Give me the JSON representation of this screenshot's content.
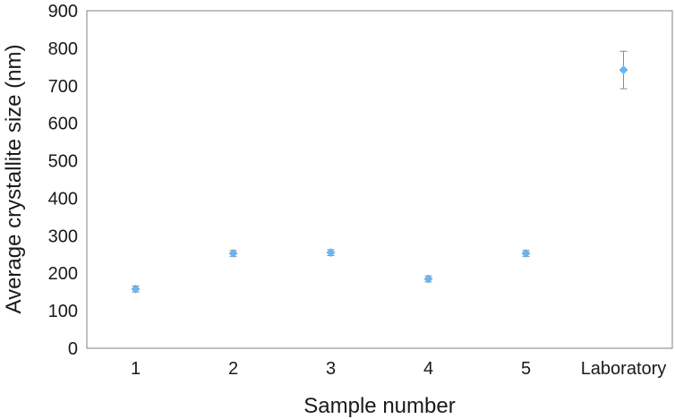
{
  "chart_data": {
    "type": "scatter",
    "title": "",
    "xlabel": "Sample number",
    "ylabel": "Average crystallite size (nm)",
    "ylim": [
      0,
      900
    ],
    "yticks": [
      0,
      100,
      200,
      300,
      400,
      500,
      600,
      700,
      800,
      900
    ],
    "categories": [
      "1",
      "2",
      "3",
      "4",
      "5",
      "Laboratory"
    ],
    "series": [
      {
        "values": [
          158,
          253,
          255,
          185,
          253,
          742
        ],
        "errors": [
          8,
          8,
          8,
          8,
          8,
          50
        ]
      }
    ],
    "grid": false,
    "legend": "none",
    "colors": {
      "marker": "#6db3ee",
      "error_bar": "#8a8a8a",
      "axis": "#808080"
    }
  }
}
